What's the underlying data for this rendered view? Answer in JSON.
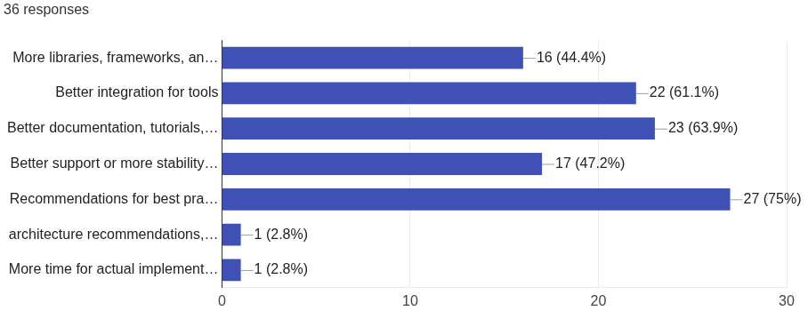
{
  "chart_data": {
    "type": "bar",
    "orientation": "horizontal",
    "title": "36 responses",
    "categories": [
      "More libraries, frameworks, an…",
      "Better integration for tools",
      "Better documentation, tutorials,…",
      "Better support or more stability…",
      "Recommendations for best pra…",
      "architecture recommendations,…",
      "More time for actual implement…"
    ],
    "values": [
      16,
      22,
      23,
      17,
      27,
      1,
      1
    ],
    "value_labels": [
      "16 (44.4%)",
      "22 (61.1%)",
      "23 (63.9%)",
      "17 (47.2%)",
      "27 (75%)",
      "1 (2.8%)",
      "1 (2.8%)"
    ],
    "color": "#3f51b5",
    "xlim": [
      0,
      30
    ],
    "xticks": [
      0,
      10,
      20,
      30
    ],
    "grid": true,
    "data_labels": true
  }
}
